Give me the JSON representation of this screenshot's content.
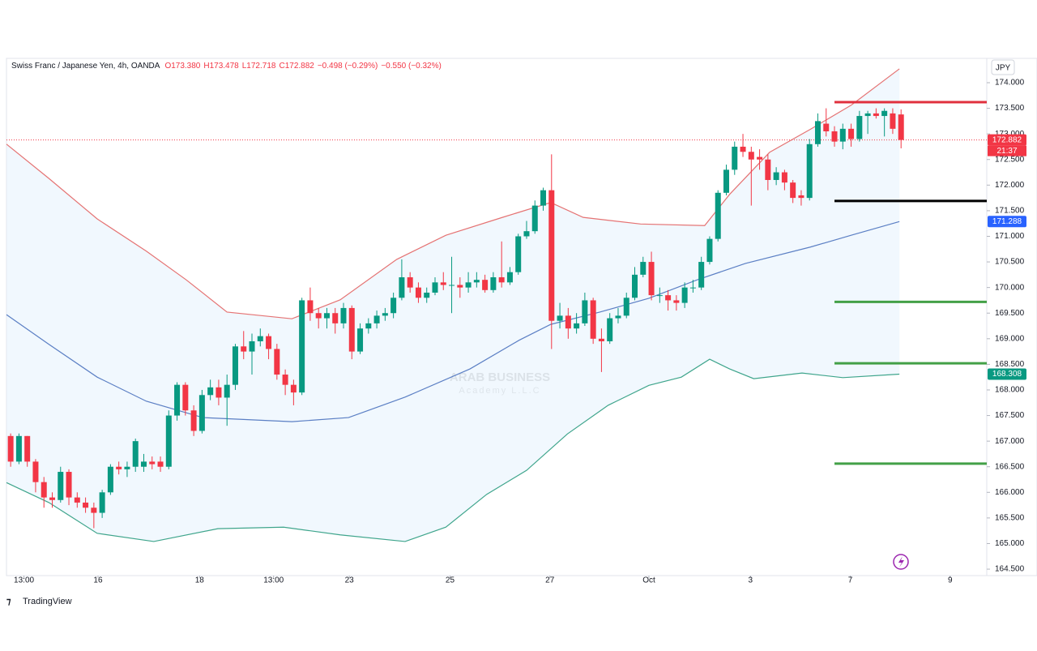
{
  "chart_data": {
    "type": "candlestick",
    "title": "Swiss Franc / Japanese Yen, 4h, OANDA",
    "header_values": [
      "O173.380",
      "H173.478",
      "L172.718",
      "C172.882",
      "−0.498 (−0.29%)",
      "−0.550 (−0.32%)"
    ],
    "currency": "JPY",
    "countdown": "21:37",
    "brand": "TradingView",
    "watermark": "ARAB BUSINESS",
    "watermark_sub": "Academy L.L.C",
    "up_color": "#089981",
    "down_color": "#f23645",
    "xlim": [
      -0.5,
      117.3
    ],
    "ylim": [
      164.374,
      174.475
    ],
    "xticks": [
      {
        "value": 1.6,
        "label": "13:00"
      },
      {
        "value": 10.5,
        "label": "16"
      },
      {
        "value": 22.7,
        "label": "18"
      },
      {
        "value": 31.6,
        "label": "13:00"
      },
      {
        "value": 40.7,
        "label": "23"
      },
      {
        "value": 52.8,
        "label": "25"
      },
      {
        "value": 64.8,
        "label": "27"
      },
      {
        "value": 76.7,
        "label": "Oct"
      },
      {
        "value": 88.9,
        "label": "3"
      },
      {
        "value": 100.9,
        "label": "7"
      },
      {
        "value": 112.9,
        "label": "9"
      }
    ],
    "yticks": [
      {
        "value": 164.5,
        "label": "164.500"
      },
      {
        "value": 165,
        "label": "165.000"
      },
      {
        "value": 165.5,
        "label": "165.500"
      },
      {
        "value": 166,
        "label": "166.000"
      },
      {
        "value": 166.5,
        "label": "166.500"
      },
      {
        "value": 167,
        "label": "167.000"
      },
      {
        "value": 167.5,
        "label": "167.500"
      },
      {
        "value": 168,
        "label": "168.000"
      },
      {
        "value": 168.5,
        "label": "168.500"
      },
      {
        "value": 169,
        "label": "169.000"
      },
      {
        "value": 169.5,
        "label": "169.500"
      },
      {
        "value": 170,
        "label": "170.000"
      },
      {
        "value": 170.5,
        "label": "170.500"
      },
      {
        "value": 171,
        "label": "171.000"
      },
      {
        "value": 171.5,
        "label": "171.500"
      },
      {
        "value": 172,
        "label": "172.000"
      },
      {
        "value": 172.5,
        "label": "172.500"
      },
      {
        "value": 173,
        "label": "173.000"
      },
      {
        "value": 173.5,
        "label": "173.500"
      },
      {
        "value": 174,
        "label": "174.000"
      }
    ],
    "open": [
      167.1,
      166.6,
      167.1,
      166.6,
      166.2,
      165.9,
      165.85,
      166.4,
      165.9,
      165.8,
      165.7,
      165.6,
      166.0,
      166.5,
      166.45,
      166.5,
      166.5,
      166.6,
      166.6,
      166.5,
      167.5,
      168.1,
      167.6,
      167.2,
      167.9,
      168.05,
      167.85,
      168.1,
      168.85,
      168.75,
      168.95,
      169.05,
      168.8,
      168.3,
      168.1,
      167.95,
      169.75,
      169.5,
      169.4,
      169.5,
      169.3,
      169.6,
      168.75,
      169.2,
      169.3,
      169.45,
      169.5,
      169.8,
      170.2,
      170.0,
      169.8,
      169.9,
      170.1,
      170.05,
      170.05,
      170.0,
      170.1,
      170.15,
      169.95,
      170.2,
      170.1,
      170.3,
      171.0,
      171.1,
      171.6,
      171.9,
      169.35,
      169.45,
      169.2,
      169.3,
      169.75,
      169.0,
      168.95,
      169.4,
      169.45,
      169.8,
      170.25,
      170.5,
      169.85,
      169.85,
      169.75,
      169.7,
      170.0,
      170.0,
      170.5,
      170.95,
      171.85,
      172.3,
      172.75,
      172.65,
      172.55,
      172.5,
      172.1,
      172.25,
      172.05,
      171.8,
      171.75,
      172.8,
      173.2,
      173.05,
      172.85,
      173.1,
      172.9,
      173.35,
      173.4,
      173.35,
      173.4,
      173.38
    ],
    "high": [
      167.15,
      167.15,
      167.1,
      166.65,
      166.3,
      166.0,
      166.5,
      166.45,
      166.0,
      165.9,
      165.8,
      166.05,
      166.55,
      166.6,
      166.6,
      167.05,
      166.75,
      166.7,
      166.7,
      167.6,
      168.15,
      168.15,
      167.7,
      168.0,
      168.2,
      168.2,
      168.3,
      168.9,
      169.15,
      169.1,
      169.2,
      169.1,
      168.9,
      168.4,
      168.2,
      169.8,
      170.0,
      169.6,
      169.6,
      169.6,
      169.7,
      169.65,
      169.3,
      169.4,
      169.55,
      169.6,
      169.9,
      170.55,
      170.3,
      170.1,
      170.0,
      170.2,
      170.3,
      170.6,
      170.2,
      170.3,
      170.3,
      170.25,
      170.3,
      170.9,
      170.4,
      171.05,
      171.3,
      171.7,
      171.95,
      172.6,
      169.7,
      169.6,
      169.5,
      169.9,
      169.8,
      169.2,
      169.5,
      169.6,
      169.9,
      170.4,
      170.6,
      170.7,
      170.0,
      169.95,
      169.85,
      170.1,
      170.15,
      170.6,
      171.0,
      171.9,
      172.4,
      172.85,
      173.0,
      172.75,
      172.7,
      172.6,
      172.35,
      172.3,
      172.1,
      171.9,
      172.9,
      173.4,
      173.5,
      173.15,
      173.2,
      173.2,
      173.45,
      173.45,
      173.5,
      173.5,
      173.5,
      173.478
    ],
    "low": [
      166.5,
      166.55,
      166.5,
      166.0,
      165.7,
      165.7,
      165.8,
      165.75,
      165.7,
      165.6,
      165.3,
      165.5,
      165.95,
      166.35,
      166.3,
      166.4,
      166.4,
      166.45,
      166.4,
      166.45,
      167.4,
      167.5,
      167.1,
      167.15,
      167.8,
      167.7,
      167.3,
      168.0,
      168.6,
      168.3,
      168.85,
      168.6,
      168.2,
      167.9,
      167.7,
      167.9,
      169.35,
      169.2,
      169.2,
      169.1,
      169.2,
      168.6,
      168.7,
      169.1,
      169.2,
      169.35,
      169.4,
      169.75,
      169.9,
      169.7,
      169.7,
      169.85,
      169.95,
      169.5,
      169.8,
      169.9,
      170.0,
      169.9,
      169.9,
      170.0,
      170.05,
      170.25,
      170.95,
      171.05,
      171.5,
      168.8,
      169.2,
      169.0,
      169.1,
      169.25,
      168.9,
      168.35,
      168.9,
      169.3,
      169.4,
      169.75,
      170.2,
      169.75,
      169.7,
      169.55,
      169.55,
      169.6,
      169.9,
      169.95,
      170.45,
      170.9,
      171.8,
      172.2,
      172.55,
      171.6,
      172.3,
      171.9,
      172.0,
      171.9,
      171.65,
      171.6,
      171.7,
      172.75,
      172.95,
      172.75,
      172.7,
      172.75,
      172.85,
      173.0,
      173.3,
      172.95,
      173.0,
      172.718
    ],
    "close": [
      166.6,
      167.1,
      166.6,
      166.2,
      165.9,
      165.85,
      166.4,
      165.9,
      165.8,
      165.7,
      165.6,
      166.0,
      166.5,
      166.45,
      166.5,
      167.0,
      166.6,
      166.55,
      166.5,
      167.5,
      168.1,
      167.6,
      167.2,
      167.9,
      168.05,
      167.85,
      168.1,
      168.85,
      168.75,
      168.95,
      169.05,
      168.8,
      168.3,
      168.1,
      167.95,
      169.75,
      169.5,
      169.4,
      169.5,
      169.3,
      169.6,
      168.75,
      169.2,
      169.3,
      169.45,
      169.5,
      169.8,
      170.2,
      170.0,
      169.8,
      169.9,
      170.1,
      170.05,
      170.05,
      170.0,
      170.1,
      170.15,
      169.95,
      170.2,
      170.1,
      170.3,
      171.0,
      171.1,
      171.6,
      171.9,
      169.35,
      169.45,
      169.2,
      169.3,
      169.75,
      169.0,
      168.95,
      169.4,
      169.45,
      169.8,
      170.25,
      170.5,
      169.85,
      169.85,
      169.75,
      169.7,
      170.0,
      170.0,
      170.5,
      170.95,
      171.85,
      172.3,
      172.75,
      172.65,
      172.5,
      172.5,
      172.1,
      172.25,
      172.05,
      171.75,
      171.75,
      172.8,
      173.25,
      173.05,
      172.85,
      173.1,
      172.9,
      173.35,
      173.4,
      173.35,
      173.45,
      173.1,
      172.882
    ],
    "bands": [
      {
        "color": "#e57373",
        "x": [
          -0.5,
          4.6,
          10.4,
          16.3,
          21.1,
          26.0,
          33.8,
          39.6,
          46.4,
          52.3,
          59.1,
          64.9,
          68.8,
          75.7,
          83.4,
          86.4,
          91.2,
          96.1,
          101.0,
          106.8
        ],
        "values": [
          172.8,
          172.13,
          171.34,
          170.71,
          170.15,
          169.52,
          169.39,
          169.76,
          170.55,
          171.02,
          171.37,
          171.66,
          171.37,
          171.24,
          171.21,
          171.82,
          172.64,
          173.09,
          173.56,
          174.27
        ]
      },
      {
        "color": "#5b7fc4",
        "x": [
          -0.5,
          4.6,
          10.4,
          16.3,
          23.1,
          33.8,
          40.6,
          47.4,
          55.2,
          61.1,
          64.9,
          70.8,
          76.7,
          82.5,
          88.3,
          96.1,
          101.0,
          106.8
        ],
        "values": [
          169.47,
          168.89,
          168.25,
          167.78,
          167.46,
          167.38,
          167.46,
          167.86,
          168.41,
          168.97,
          169.28,
          169.52,
          169.79,
          170.15,
          170.47,
          170.79,
          171.02,
          171.288
        ]
      },
      {
        "color": "#3fa58c",
        "x": [
          -0.5,
          4.6,
          10.4,
          17.2,
          24.9,
          32.8,
          39.6,
          47.4,
          52.3,
          57.2,
          62.0,
          66.9,
          71.8,
          76.7,
          80.6,
          84.0,
          86.4,
          89.3,
          95.1,
          100.0,
          106.8
        ],
        "values": [
          166.19,
          165.8,
          165.2,
          165.04,
          165.29,
          165.32,
          165.17,
          165.04,
          165.32,
          165.96,
          166.43,
          167.14,
          167.7,
          168.09,
          168.25,
          168.6,
          168.41,
          168.22,
          168.33,
          168.24,
          168.308
        ]
      }
    ],
    "levels": [
      {
        "value": 173.62,
        "color": "#e0303e",
        "x0": 99
      },
      {
        "value": 171.69,
        "color": "#000000",
        "x0": 99
      },
      {
        "value": 169.72,
        "color": "#43a047",
        "x0": 99
      },
      {
        "value": 168.52,
        "color": "#43a047",
        "x0": 99
      },
      {
        "value": 166.56,
        "color": "#43a047",
        "x0": 99
      }
    ],
    "price_labels": [
      {
        "value": 172.882,
        "color": "#f23645"
      },
      {
        "value": 171.288,
        "color": "#2962ff"
      },
      {
        "value": 168.308,
        "color": "#089981"
      }
    ]
  }
}
